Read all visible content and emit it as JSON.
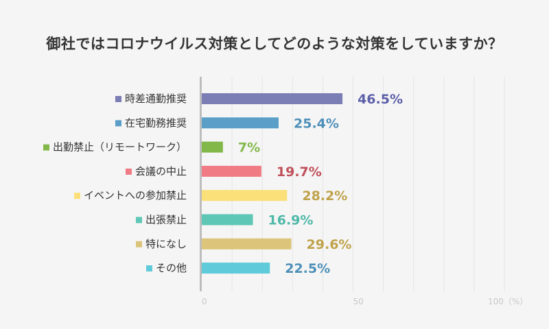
{
  "title": "御社ではコロナウイルス対策としてどのような対策をしていますか？",
  "chart_data": {
    "type": "bar",
    "orientation": "horizontal",
    "categories": [
      "時差通勤推奨",
      "在宅勤務推奨",
      "出勤禁止（リモートワーク）",
      "会議の中止",
      "イベントへの参加禁止",
      "出張禁止",
      "特になし",
      "その他"
    ],
    "values": [
      46.5,
      25.4,
      7,
      19.7,
      28.2,
      16.9,
      29.6,
      22.5
    ],
    "value_labels": [
      "46.5%",
      "25.4%",
      "7%",
      "19.7%",
      "28.2%",
      "16.9%",
      "29.6%",
      "22.5%"
    ],
    "bar_colors": [
      "#7b7db5",
      "#5b9fc9",
      "#82b84a",
      "#f07b85",
      "#fbe07a",
      "#5ec7b6",
      "#dcc57a",
      "#5fcad9"
    ],
    "label_colors": [
      "#5b5ea8",
      "#4d8fb8",
      "#82b84a",
      "#c0505a",
      "#bfa24a",
      "#4fb8a8",
      "#bfa24a",
      "#4d8fb8"
    ],
    "xlim": [
      0,
      100
    ],
    "xticks": [
      "0",
      "50",
      "100（%）"
    ],
    "grid": true
  }
}
